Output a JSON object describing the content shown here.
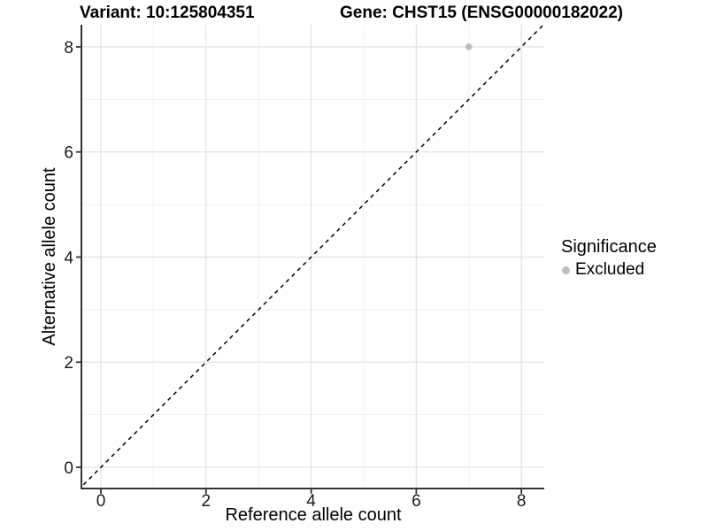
{
  "chart_data": {
    "type": "scatter",
    "titles": {
      "variant": "Variant: 10:125804351",
      "gene": "Gene: CHST15 (ENSG00000182022)"
    },
    "xlabel": "Reference allele count",
    "ylabel": "Alternative allele count",
    "xlim": [
      -0.354,
      8.435
    ],
    "ylim": [
      -0.404,
      8.42
    ],
    "x_ticks": [
      0,
      2,
      4,
      6,
      8
    ],
    "y_ticks": [
      0,
      2,
      4,
      6,
      8
    ],
    "x_minor_ticks": [
      1,
      3,
      5,
      7
    ],
    "y_minor_ticks": [
      1,
      3,
      5,
      7
    ],
    "grid": "on",
    "legend_position": "right",
    "legend": {
      "title": "Significance",
      "items": [
        {
          "label": "Excluded",
          "color": "#bebebe"
        }
      ]
    },
    "series": [
      {
        "name": "Excluded",
        "color": "#bebebe",
        "points": [
          {
            "x": 7,
            "y": 8
          }
        ]
      }
    ],
    "reference_line": {
      "type": "identity",
      "slope": 1,
      "intercept": 0,
      "style": "dashed",
      "color": "#000000"
    },
    "colors": {
      "background": "#ffffff",
      "grid_major": "#e3e3e3",
      "grid_minor": "#f1f1f1",
      "axis": "#333333",
      "tick_label": "#1a1a1a",
      "point": "#bebebe"
    }
  }
}
